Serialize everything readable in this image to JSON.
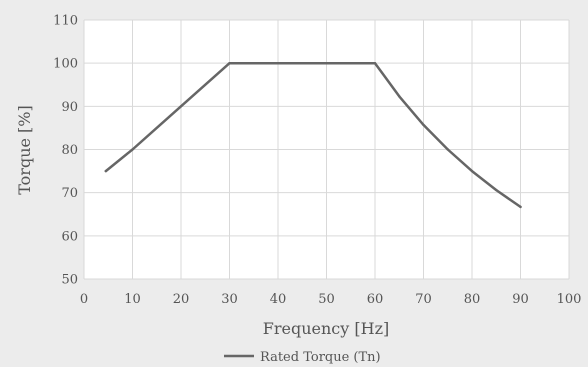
{
  "chart_data": {
    "type": "line",
    "title": "",
    "xlabel": "Frequency [Hz]",
    "ylabel": "Torque [%]",
    "xlim": [
      0,
      100
    ],
    "ylim": [
      50,
      110
    ],
    "xticks": [
      "0",
      "10",
      "20",
      "30",
      "40",
      "50",
      "60",
      "70",
      "80",
      "90",
      "100"
    ],
    "yticks": [
      "50",
      "60",
      "70",
      "80",
      "90",
      "100",
      "110"
    ],
    "grid": true,
    "legend_position": "bottom",
    "series": [
      {
        "name": "Rated Torque (Tn)",
        "color": "#666666",
        "x": [
          4.5,
          10,
          20,
          30,
          60,
          65,
          70,
          75,
          80,
          85,
          90
        ],
        "y": [
          75,
          80,
          90,
          100,
          100,
          92.3,
          85.7,
          80,
          75,
          70.6,
          66.7
        ]
      }
    ]
  }
}
